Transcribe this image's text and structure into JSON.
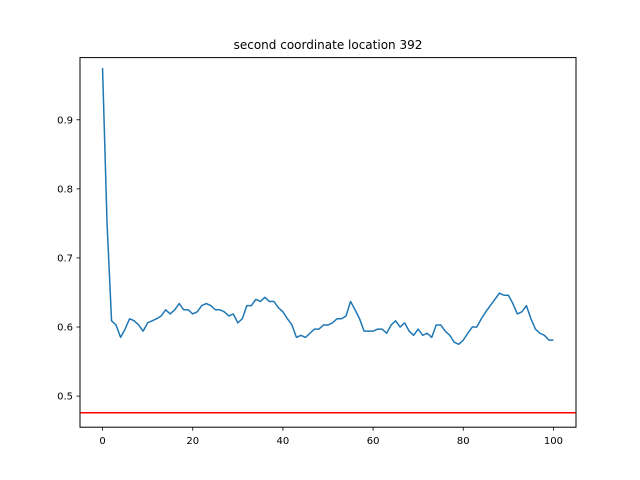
{
  "chart_data": {
    "type": "line",
    "title": "second coordinate location 392",
    "xlabel": "",
    "ylabel": "",
    "xlim": [
      -5,
      105
    ],
    "ylim": [
      0.455,
      0.99
    ],
    "xticks": [
      0,
      20,
      40,
      60,
      80,
      100
    ],
    "yticks": [
      0.5,
      0.6,
      0.7,
      0.8,
      0.9
    ],
    "ytick_labels": [
      "0.5",
      "0.6",
      "0.7",
      "0.8",
      "0.9"
    ],
    "grid": false,
    "series": [
      {
        "color": "#1f77b4",
        "x": [
          0,
          1,
          2,
          3,
          4,
          5,
          6,
          7,
          8,
          9,
          10,
          11,
          12,
          13,
          14,
          15,
          16,
          17,
          18,
          19,
          20,
          21,
          22,
          23,
          24,
          25,
          26,
          27,
          28,
          29,
          30,
          31,
          32,
          33,
          34,
          35,
          36,
          37,
          38,
          39,
          40,
          41,
          42,
          43,
          44,
          45,
          46,
          47,
          48,
          49,
          50,
          51,
          52,
          53,
          54,
          55,
          56,
          57,
          58,
          59,
          60,
          61,
          62,
          63,
          64,
          65,
          66,
          67,
          68,
          69,
          70,
          71,
          72,
          73,
          74,
          75,
          76,
          77,
          78,
          79,
          80,
          81,
          82,
          83,
          84,
          85,
          86,
          87,
          88,
          89,
          90,
          91,
          92,
          93,
          94,
          95,
          96,
          97,
          98,
          99,
          100
        ],
        "y": [
          0.975,
          0.75,
          0.609,
          0.603,
          0.585,
          0.597,
          0.612,
          0.609,
          0.603,
          0.594,
          0.606,
          0.609,
          0.612,
          0.616,
          0.625,
          0.619,
          0.625,
          0.634,
          0.625,
          0.625,
          0.619,
          0.622,
          0.631,
          0.634,
          0.631,
          0.625,
          0.625,
          0.622,
          0.616,
          0.619,
          0.606,
          0.612,
          0.631,
          0.631,
          0.64,
          0.637,
          0.643,
          0.637,
          0.637,
          0.628,
          0.622,
          0.612,
          0.603,
          0.585,
          0.588,
          0.585,
          0.591,
          0.597,
          0.597,
          0.603,
          0.603,
          0.606,
          0.612,
          0.612,
          0.616,
          0.637,
          0.625,
          0.612,
          0.594,
          0.594,
          0.594,
          0.597,
          0.597,
          0.591,
          0.603,
          0.609,
          0.6,
          0.606,
          0.594,
          0.588,
          0.597,
          0.588,
          0.591,
          0.585,
          0.603,
          0.603,
          0.594,
          0.588,
          0.578,
          0.575,
          0.581,
          0.591,
          0.6,
          0.6,
          0.612,
          0.622,
          0.631,
          0.64,
          0.649,
          0.646,
          0.646,
          0.634,
          0.619,
          0.622,
          0.631,
          0.612,
          0.597,
          0.591,
          0.588,
          0.581,
          0.581
        ]
      }
    ],
    "hlines": [
      {
        "y": 0.476,
        "color": "#ff0000"
      }
    ]
  }
}
